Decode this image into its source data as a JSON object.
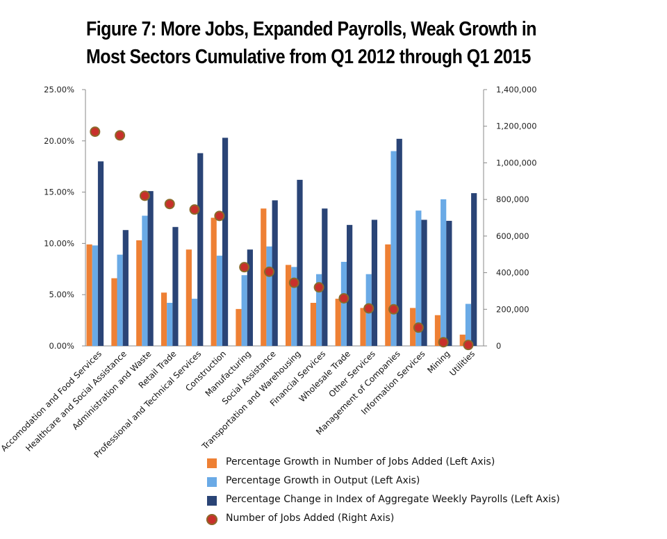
{
  "title_line1": "Figure 7: More Jobs, Expanded Payrolls, Weak Growth in",
  "title_line2": "Most Sectors Cumulative from Q1 2012 through Q1 2015",
  "colors": {
    "jobs_growth": "#ee8034",
    "output_growth": "#6aaae6",
    "payroll_change": "#2a4476",
    "jobs_added": "#c8302b",
    "jobs_added_edge": "#8b6a2a",
    "axis": "#888888"
  },
  "chart_data": {
    "type": "bar",
    "title": "Figure 7: More Jobs, Expanded Payrolls, Weak Growth in Most Sectors Cumulative from Q1 2012 through Q1 2015",
    "categories": [
      "Accomodation and Food Services",
      "Healthcare and Social Assistance",
      "Administration and Waste",
      "Retail Trade",
      "Professional and Technical Services",
      "Construction",
      "Manufacturing",
      "Social Assistance",
      "Transportation and Warehousing",
      "Financial Services",
      "Wholesale Trade",
      "Other Services",
      "Management of Companies",
      "Information Services",
      "Mining",
      "Utilities"
    ],
    "left_axis": {
      "min": 0,
      "max": 0.25,
      "ticks": [
        0,
        0.05,
        0.1,
        0.15,
        0.2,
        0.25
      ],
      "tick_labels": [
        "0.00%",
        "5.00%",
        "10.00%",
        "15.00%",
        "20.00%",
        "25.00%"
      ]
    },
    "right_axis": {
      "min": 0,
      "max": 1400000,
      "ticks": [
        0,
        200000,
        400000,
        600000,
        800000,
        1000000,
        1200000,
        1400000
      ],
      "tick_labels": [
        "0",
        "200,000",
        "400,000",
        "600,000",
        "800,000",
        "1,000,000",
        "1,200,000",
        "1,400,000"
      ]
    },
    "series": [
      {
        "name": "Percentage Growth in Number of Jobs Added (Left Axis)",
        "kind": "bar",
        "axis": "left",
        "values": [
          0.099,
          0.066,
          0.103,
          0.052,
          0.094,
          0.125,
          0.036,
          0.134,
          0.079,
          0.042,
          0.046,
          0.037,
          0.099,
          0.037,
          0.03,
          0.011
        ]
      },
      {
        "name": "Percentage Growth in Output (Left Axis)",
        "kind": "bar",
        "axis": "left",
        "values": [
          0.098,
          0.089,
          0.127,
          0.042,
          0.046,
          0.088,
          0.069,
          0.097,
          0.077,
          0.07,
          0.082,
          0.07,
          0.19,
          0.132,
          0.143,
          0.041
        ]
      },
      {
        "name": "Percentage Change in Index of Aggregate Weekly Payrolls (Left Axis)",
        "kind": "bar",
        "axis": "left",
        "values": [
          0.18,
          0.113,
          0.151,
          0.116,
          0.188,
          0.203,
          0.094,
          0.142,
          0.162,
          0.134,
          0.118,
          0.123,
          0.202,
          0.123,
          0.122,
          0.149
        ]
      },
      {
        "name": "Number of Jobs Added (Right Axis)",
        "kind": "scatter",
        "axis": "right",
        "values": [
          1170000,
          1150000,
          820000,
          775000,
          745000,
          710000,
          430000,
          405000,
          345000,
          320000,
          260000,
          205000,
          200000,
          100000,
          20000,
          5000
        ]
      }
    ]
  }
}
